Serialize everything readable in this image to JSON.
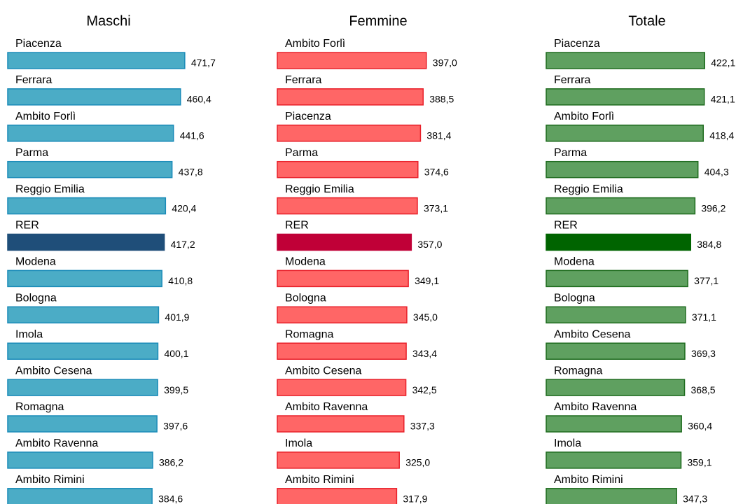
{
  "chart_data": [
    {
      "type": "bar",
      "orientation": "horizontal",
      "title": "Maschi",
      "categories": [
        "Piacenza",
        "Ferrara",
        "Ambito Forlì",
        "Parma",
        "Reggio Emilia",
        "RER",
        "Modena",
        "Bologna",
        "Imola",
        "Ambito Cesena",
        "Romagna",
        "Ambito Ravenna",
        "Ambito Rimini"
      ],
      "values": [
        471.7,
        460.4,
        441.6,
        437.8,
        420.4,
        417.2,
        410.8,
        401.9,
        400.1,
        399.5,
        397.6,
        386.2,
        384.6
      ],
      "value_labels": [
        "471,7",
        "460,4",
        "441,6",
        "437,8",
        "420,4",
        "417,2",
        "410,8",
        "401,9",
        "400,1",
        "399,5",
        "397,6",
        "386,2",
        "384,6"
      ],
      "colors": [
        "#4bacc6",
        "#4bacc6",
        "#4bacc6",
        "#4bacc6",
        "#4bacc6",
        "#1f4e79",
        "#4bacc6",
        "#4bacc6",
        "#4bacc6",
        "#4bacc6",
        "#4bacc6",
        "#4bacc6",
        "#4bacc6"
      ],
      "edge_color": "#1a8bb8",
      "xlim": [
        0,
        500
      ]
    },
    {
      "type": "bar",
      "orientation": "horizontal",
      "title": "Femmine",
      "categories": [
        "Ambito Forlì",
        "Ferrara",
        "Piacenza",
        "Parma",
        "Reggio Emilia",
        "RER",
        "Modena",
        "Bologna",
        "Romagna",
        "Ambito Cesena",
        "Ambito Ravenna",
        "Imola",
        "Ambito Rimini"
      ],
      "values": [
        397.0,
        388.5,
        381.4,
        374.6,
        373.1,
        357.0,
        349.1,
        345.0,
        343.4,
        342.5,
        337.3,
        325.0,
        317.9
      ],
      "value_labels": [
        "397,0",
        "388,5",
        "381,4",
        "374,6",
        "373,1",
        "357,0",
        "349,1",
        "345,0",
        "343,4",
        "342,5",
        "337,3",
        "325,0",
        "317,9"
      ],
      "colors": [
        "#ff6666",
        "#ff6666",
        "#ff6666",
        "#ff6666",
        "#ff6666",
        "#c00037",
        "#ff6666",
        "#ff6666",
        "#ff6666",
        "#ff6666",
        "#ff6666",
        "#ff6666",
        "#ff6666"
      ],
      "edge_color": "#e8202a",
      "xlim": [
        0,
        500
      ]
    },
    {
      "type": "bar",
      "orientation": "horizontal",
      "title": "Totale",
      "categories": [
        "Piacenza",
        "Ferrara",
        "Ambito Forlì",
        "Parma",
        "Reggio Emilia",
        "RER",
        "Modena",
        "Bologna",
        "Ambito Cesena",
        "Romagna",
        "Ambito Ravenna",
        "Imola",
        "Ambito Rimini"
      ],
      "values": [
        422.1,
        421.1,
        418.4,
        404.3,
        396.2,
        384.8,
        377.1,
        371.1,
        369.3,
        368.5,
        360.4,
        359.1,
        347.3
      ],
      "value_labels": [
        "422,1",
        "421,1",
        "418,4",
        "404,3",
        "396,2",
        "384,8",
        "377,1",
        "371,1",
        "369,3",
        "368,5",
        "360,4",
        "359,1",
        "347,3"
      ],
      "colors": [
        "#5fa060",
        "#5fa060",
        "#5fa060",
        "#5fa060",
        "#5fa060",
        "#006400",
        "#5fa060",
        "#5fa060",
        "#5fa060",
        "#5fa060",
        "#5fa060",
        "#5fa060",
        "#5fa060"
      ],
      "edge_color": "#1e6b1e",
      "xlim": [
        0,
        500
      ]
    }
  ]
}
